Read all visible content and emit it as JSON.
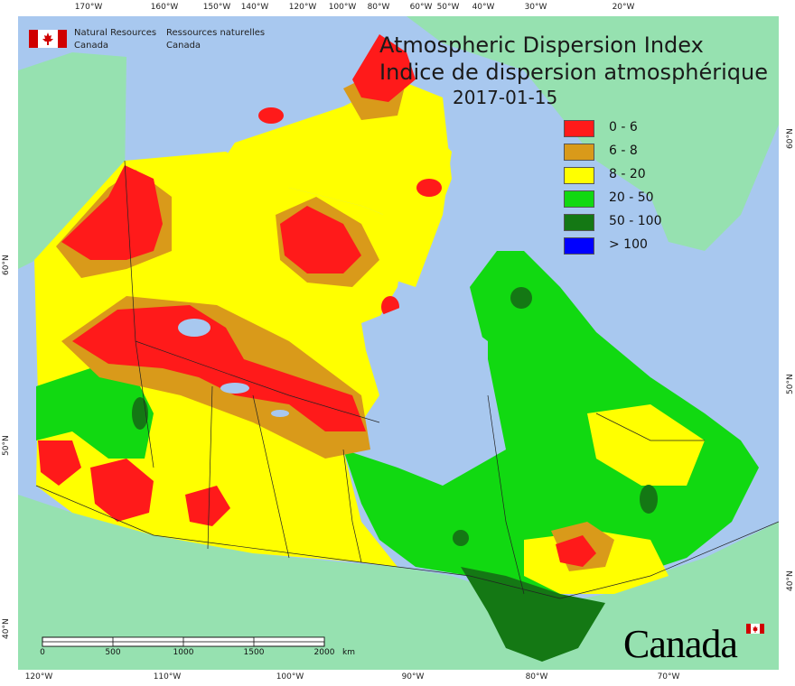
{
  "agency": {
    "english_line1": "Natural Resources",
    "english_line2": "Canada",
    "french_line1": "Ressources naturelles",
    "french_line2": "Canada"
  },
  "title": {
    "english": "Atmospheric Dispersion Index",
    "french": "Indice de dispersion atmosphérique",
    "date": "2017-01-15"
  },
  "legend": [
    {
      "label": "0 - 6",
      "color": "#ff1a1a"
    },
    {
      "label": "6 - 8",
      "color": "#d99a1a"
    },
    {
      "label": "8 - 20",
      "color": "#ffff00"
    },
    {
      "label": "20 - 50",
      "color": "#11d911"
    },
    {
      "label": "50 - 100",
      "color": "#147814"
    },
    {
      "label": "> 100",
      "color": "#0000ff"
    }
  ],
  "grid_labels": {
    "top": [
      "170°W",
      "160°W",
      "150°W",
      "140°W",
      "120°W",
      "100°W",
      "80°W",
      "60°W",
      "50°W",
      "40°W",
      "30°W",
      "20°W"
    ],
    "bottom": [
      "120°W",
      "110°W",
      "100°W",
      "90°W",
      "80°W",
      "70°W"
    ],
    "left": [
      "60°N",
      "50°N",
      "40°N"
    ],
    "right": [
      "60°N",
      "50°N",
      "40°N"
    ]
  },
  "scale": {
    "ticks": [
      "0",
      "500",
      "1000",
      "1500",
      "2000"
    ],
    "unit": "km"
  },
  "wordmark": "Canada",
  "colors": {
    "ocean": "#a8c8ef",
    "land_outside": "#96e1b0",
    "border": "#222222"
  }
}
